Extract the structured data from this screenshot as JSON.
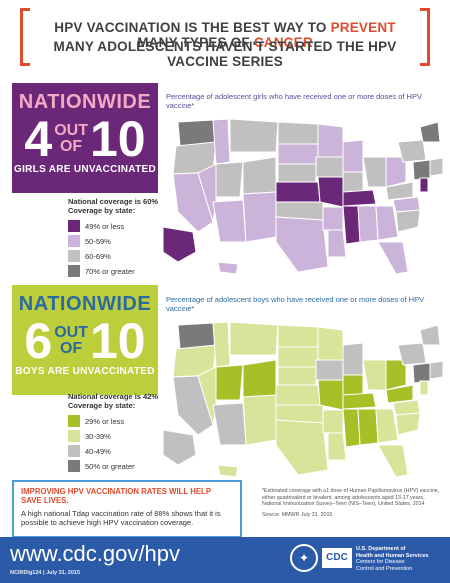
{
  "header": {
    "line1_a": "HPV VACCINATION IS THE BEST WAY TO ",
    "line1_hl1": "PREVENT",
    "line1_b": " MANY TYPES OF ",
    "line1_hl2": "CANCER",
    "line2": "MANY ADOLESCENTS HAVEN'T STARTED THE HPV VACCINE SERIES"
  },
  "girls": {
    "nationwide": "NATIONWIDE",
    "num": "4",
    "out": "OUT",
    "of": "OF",
    "den": "10",
    "sub": "GIRLS ARE UNVACCINATED",
    "map_title": "Percentage of adolescent girls who have received one or more doses of HPV vaccine*",
    "legend_title": "National coverage is 60%",
    "legend_sub": "Coverage by state:",
    "legend": [
      {
        "label": "49% or less",
        "color": "#6b2878"
      },
      {
        "label": "50-59%",
        "color": "#cbb3d9"
      },
      {
        "label": "60-69%",
        "color": "#c0c0c0"
      },
      {
        "label": "70% or greater",
        "color": "#7a7a7a"
      }
    ]
  },
  "boys": {
    "nationwide": "NATIONWIDE",
    "num": "6",
    "out": "OUT",
    "of": "OF",
    "den": "10",
    "sub": "BOYS ARE UNVACCINATED",
    "map_title": "Percentage of adolescent boys who have received one or more doses of HPV vaccine*",
    "legend_title": "National coverage is 42%",
    "legend_sub": "Coverage by state:",
    "legend": [
      {
        "label": "29% or less",
        "color": "#a8bf28"
      },
      {
        "label": "30-39%",
        "color": "#d9e39a"
      },
      {
        "label": "40-49%",
        "color": "#c0c0c0"
      },
      {
        "label": "50% or greater",
        "color": "#7a7a7a"
      }
    ]
  },
  "callout": {
    "title": "IMPROVING HPV VACCINATION RATES WILL HELP SAVE LIVES.",
    "body": "A high national Tdap vaccination rate of 88% shows that it is possible to achieve high HPV vaccination coverage."
  },
  "footnote": {
    "text": "*Estimated coverage with ≥1 dose of Human Papillomavirus (HPV) vaccine, either quadrivalent or bivalent, among adolescents aged 13-17 years, National Immunization Survey–Teen (NIS–Teen), United States, 2014",
    "source": "Source: MMWR July 31, 2015"
  },
  "footer": {
    "url": "www.cdc.gov/hpv",
    "code": "NCIRDlg124 | July 31, 2015",
    "cdc": "CDC",
    "dept1": "U.S. Department of",
    "dept2": "Health and Human Services",
    "dept3": "Centers for Disease",
    "dept4": "Control and Prevention"
  },
  "colors": {
    "accent": "#e04b2e",
    "girls_panel": "#6b2878",
    "boys_panel": "#bdce3c",
    "footer": "#2b5aa8"
  }
}
